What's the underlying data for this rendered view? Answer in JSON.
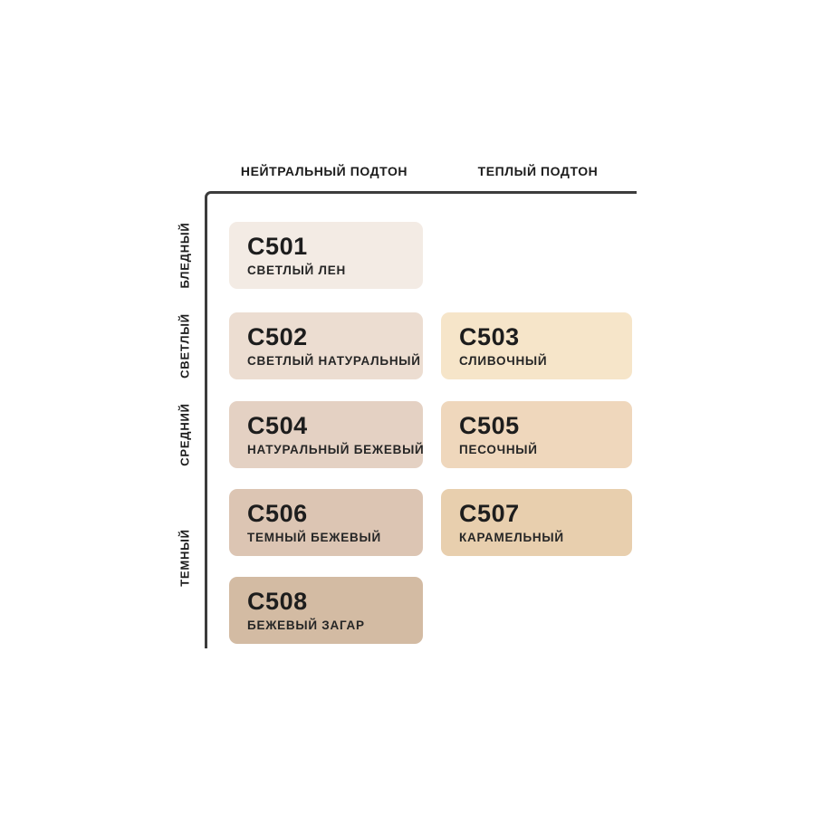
{
  "page": {
    "background": "#ffffff"
  },
  "axis": {
    "line_color": "#3c3c3c",
    "column_headers": [
      "НЕЙТРАЛЬНЫЙ ПОДТОН",
      "ТЕПЛЫЙ ПОДТОН"
    ],
    "row_labels": [
      "БЛЕДНЫЙ",
      "СВЕТЛЫЙ",
      "СРЕДНИЙ",
      "ТЕМНЫЙ"
    ]
  },
  "chart_data": {
    "type": "heatmap",
    "title": "",
    "x_categories": [
      "НЕЙТРАЛЬНЫЙ ПОДТОН",
      "ТЕПЛЫЙ ПОДТОН"
    ],
    "y_categories": [
      "БЛЕДНЫЙ",
      "СВЕТЛЫЙ",
      "СРЕДНИЙ",
      "ТЕМНЫЙ"
    ],
    "legend_position": "none",
    "grid": false,
    "cells": [
      {
        "code": "C501",
        "name": "СВЕТЛЫЙ ЛЕН",
        "color": "#f3ebe4",
        "row": 0,
        "col": 0,
        "undertone": "НЕЙТРАЛЬНЫЙ ПОДТОН",
        "depth": "БЛЕДНЫЙ"
      },
      {
        "code": "C502",
        "name": "СВЕТЛЫЙ НАТУРАЛЬНЫЙ",
        "color": "#ecddd1",
        "row": 1,
        "col": 0,
        "undertone": "НЕЙТРАЛЬНЫЙ ПОДТОН",
        "depth": "СВЕТЛЫЙ"
      },
      {
        "code": "C503",
        "name": "СЛИВОЧНЫЙ",
        "color": "#f6e5c9",
        "row": 1,
        "col": 1,
        "undertone": "ТЕПЛЫЙ ПОДТОН",
        "depth": "СВЕТЛЫЙ"
      },
      {
        "code": "C504",
        "name": "НАТУРАЛЬНЫЙ БЕЖЕВЫЙ",
        "color": "#e4d1c3",
        "row": 2,
        "col": 0,
        "undertone": "НЕЙТРАЛЬНЫЙ ПОДТОН",
        "depth": "СРЕДНИЙ"
      },
      {
        "code": "C505",
        "name": "ПЕСОЧНЫЙ",
        "color": "#efd7bc",
        "row": 2,
        "col": 1,
        "undertone": "ТЕПЛЫЙ ПОДТОН",
        "depth": "СРЕДНИЙ"
      },
      {
        "code": "C506",
        "name": "ТЕМНЫЙ БЕЖЕВЫЙ",
        "color": "#dcc5b3",
        "row": 3,
        "col": 0,
        "undertone": "НЕЙТРАЛЬНЫЙ ПОДТОН",
        "depth": "ТЕМНЫЙ"
      },
      {
        "code": "C507",
        "name": "КАРАМЕЛЬНЫЙ",
        "color": "#e8cfae",
        "row": 3,
        "col": 1,
        "undertone": "ТЕПЛЫЙ ПОДТОН",
        "depth": "ТЕМНЫЙ"
      },
      {
        "code": "C508",
        "name": "БЕЖЕВЫЙ ЗАГАР",
        "color": "#d3bba3",
        "row": 4,
        "col": 0,
        "undertone": "НЕЙТРАЛЬНЫЙ ПОДТОН",
        "depth": "ТЕМНЫЙ"
      }
    ]
  }
}
